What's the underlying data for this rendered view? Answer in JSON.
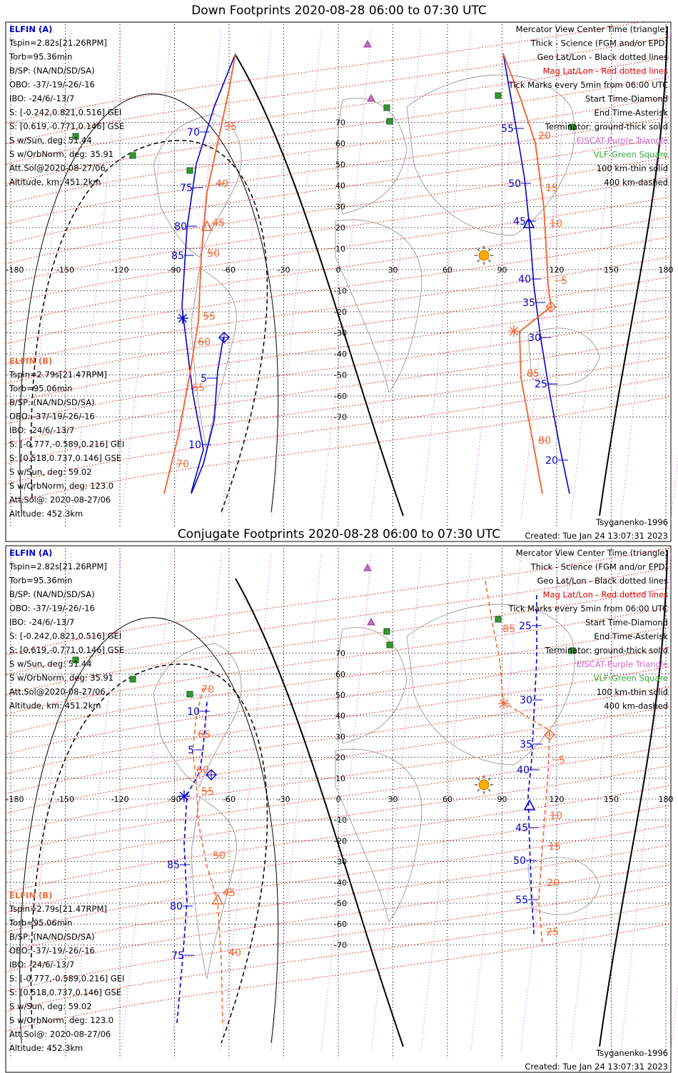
{
  "panels": [
    {
      "id": "down",
      "title": "Down Footprints 2020-08-28 06:00 to 07:30 UTC",
      "top_label": "Tsyganenko-1996",
      "created": "Created: Tue Jan 24 13:07:31 2023",
      "elfin_a": {
        "name": "ELFIN (A)",
        "color": "#0000cc",
        "lines": [
          "Tspin=2.82s[21.26RPM]",
          "Torb=95.36min",
          "B/SP: (NA/ND/SD/SA)",
          "OBO: -37/-19/-26/-16",
          "IBO: -24/6/-13/7",
          "S: [-0.242,0.821,0.516] GEI",
          "S: [0.619,-0.771,0.146] GSE",
          "S w/Sun, deg: 51.44",
          "S w/OrbNorm, deg: 35.91",
          "Att.Sol@2020-08-27/06",
          "Altitude, km: 451.2km"
        ]
      },
      "elfin_b": {
        "name": "ELFIN (B)",
        "color": "#f26b3a",
        "lines": [
          "Tspin=2.79s[21.47RPM]",
          "Torb=95.06min",
          "B/SP: (NA/ND/SD/SA)",
          "OBO: -37/-19/-26/-16",
          "IBO: -24/6/-13/7",
          "S: [-0.777,-0.589,0.216] GEI",
          "S: [0.518,0.737,0.146] GSE",
          "S w/Sun, deg: 59.02",
          "S w/OrbNorm, deg: 123.0",
          "Att.Sol@: 2020-08-27/06",
          "Altitude: 452.3km"
        ]
      },
      "legend": [
        {
          "text": "Mercator View Center Time (triangle)",
          "color": "#000000"
        },
        {
          "text": "Thick - Science (FGM and/or EPD)",
          "color": "#000000"
        },
        {
          "text": "Geo Lat/Lon - Black dotted lines",
          "color": "#000000"
        },
        {
          "text": "Mag Lat/Lon - Red dotted lines",
          "color": "#dd0000"
        },
        {
          "text": "Tick Marks every 5min from 06:00 UTC",
          "color": "#000000"
        },
        {
          "text": "Start Time-Diamond",
          "color": "#000000"
        },
        {
          "text": "End Time-Asterisk",
          "color": "#000000"
        },
        {
          "text": "Terminator: ground-thick solid",
          "color": "#000000"
        },
        {
          "text": "EISCAT-Purple Triangle",
          "color": "#cc66cc"
        },
        {
          "text": "VLF-Green Square",
          "color": "#33aa33"
        },
        {
          "text": "100 km-thin solid",
          "color": "#000000"
        },
        {
          "text": "400 km-dashed",
          "color": "#000000"
        }
      ],
      "lon_ticks": [
        "-180",
        "-150",
        "-120",
        "-90",
        "-60",
        "-30",
        "0",
        "30",
        "60",
        "90",
        "120",
        "150",
        "180"
      ],
      "lat_ticks": [
        "70",
        "60",
        "50",
        "40",
        "30",
        "20",
        "10",
        "-10",
        "-20",
        "-30",
        "-40",
        "-50",
        "-60",
        "-70"
      ],
      "track_labels": {
        "a_left": [
          "70",
          "75",
          "80",
          "85",
          "5",
          "10"
        ],
        "b_left": [
          "35",
          "40",
          "45",
          "50",
          "55",
          "60",
          "65",
          "70"
        ],
        "a_right": [
          "55",
          "50",
          "45",
          "40",
          "35",
          "30",
          "25",
          "20"
        ],
        "b_right": [
          "20",
          "15",
          "10",
          "5",
          "85",
          "80"
        ]
      }
    },
    {
      "id": "conj",
      "title": "Conjugate Footprints 2020-08-28 06:00 to 07:30 UTC",
      "top_label": "Tsyganenko-1996",
      "created": "Created: Tue Jan 24 13:07:31 2023",
      "elfin_a": {
        "name": "ELFIN (A)",
        "color": "#0000cc",
        "lines": [
          "Tspin=2.82s[21.26RPM]",
          "Torb=95.36min",
          "B/SP: (NA/ND/SD/SA)",
          "OBO: -37/-19/-26/-16",
          "IBO: -24/6/-13/7",
          "S: [-0.242,0.821,0.516] GEI",
          "S: [0.619,-0.771,0.146] GSE",
          "S w/Sun, deg: 51.44",
          "S w/OrbNorm, deg: 35.91",
          "Att.Sol@2020-08-27/06",
          "Altitude, km: 451.2km"
        ]
      },
      "elfin_b": {
        "name": "ELFIN (B)",
        "color": "#f26b3a",
        "lines": [
          "Tspin=2.79s[21.47RPM]",
          "Torb=95.06min",
          "B/SP: (NA/ND/SD/SA)",
          "OBO: -37/-19/-26/-16",
          "IBO: -24/6/-13/7",
          "S: [-0.777,-0.589,0.216] GEI",
          "S: [0.518,0.737,0.146] GSE",
          "S w/Sun, deg: 59.02",
          "S w/OrbNorm, deg: 123.0",
          "Att.Sol@: 2020-08-27/06",
          "Altitude: 452.3km"
        ]
      },
      "legend": [
        {
          "text": "Mercator View Center Time (triangle)",
          "color": "#000000"
        },
        {
          "text": "Thick - Science (FGM and/or EPD)",
          "color": "#000000"
        },
        {
          "text": "Geo Lat/Lon - Black dotted lines",
          "color": "#000000"
        },
        {
          "text": "Mag Lat/Lon - Red dotted lines",
          "color": "#dd0000"
        },
        {
          "text": "Tick Marks every 5min from 06:00 UTC",
          "color": "#000000"
        },
        {
          "text": "Start Time-Diamond",
          "color": "#000000"
        },
        {
          "text": "End Time-Asterisk",
          "color": "#000000"
        },
        {
          "text": "Terminator: ground-thick solid",
          "color": "#000000"
        },
        {
          "text": "EISCAT-Purple Triangle",
          "color": "#cc66cc"
        },
        {
          "text": "VLF-Green Square",
          "color": "#33aa33"
        },
        {
          "text": "100 km-thin solid",
          "color": "#000000"
        },
        {
          "text": "400 km-dashed",
          "color": "#000000"
        }
      ],
      "lon_ticks": [
        "-180",
        "-150",
        "-120",
        "-90",
        "-60",
        "-30",
        "0",
        "30",
        "60",
        "90",
        "120",
        "150",
        "180"
      ],
      "lat_ticks": [
        "70",
        "60",
        "50",
        "40",
        "30",
        "20",
        "10",
        "-10",
        "-20",
        "-30",
        "-40",
        "-50",
        "-60",
        "-70"
      ],
      "track_labels": {
        "a_left": [
          "10",
          "5",
          "85",
          "80",
          "75"
        ],
        "b_left": [
          "70",
          "65",
          "60",
          "55",
          "50",
          "45",
          "40"
        ],
        "a_right": [
          "25",
          "30",
          "35",
          "40",
          "45",
          "50",
          "55"
        ],
        "b_right": [
          "85",
          "5",
          "10",
          "15",
          "20",
          "25"
        ]
      }
    }
  ]
}
